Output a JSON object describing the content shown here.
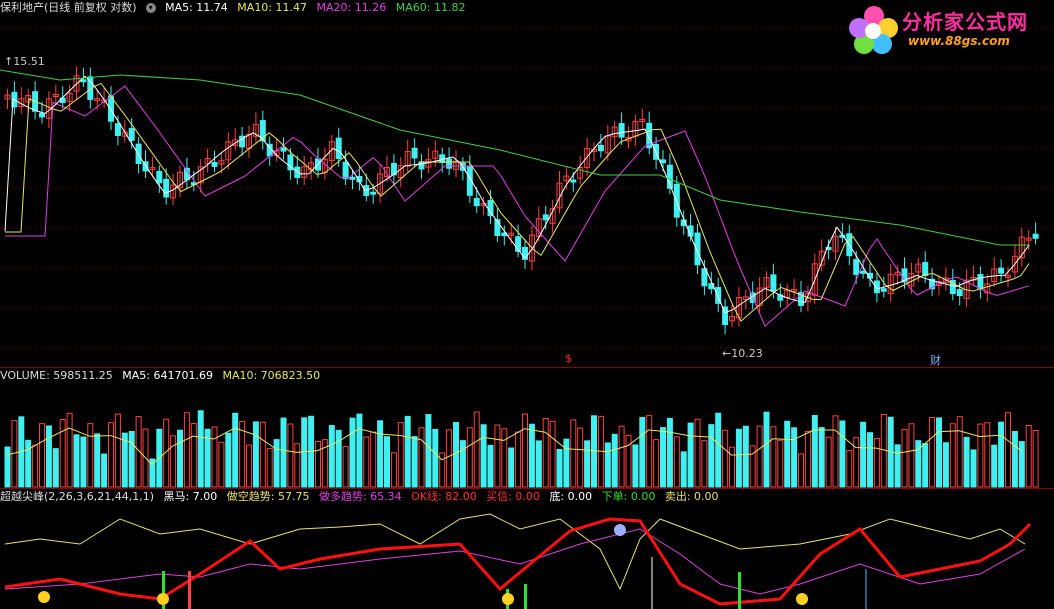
{
  "price_header": {
    "title": "保利地产(日线 前复权 对数)",
    "ma5": "MA5: 11.74",
    "ma10": "MA10: 11.47",
    "ma20": "MA20: 11.26",
    "ma60": "MA60: 11.82"
  },
  "price_labels": {
    "high": "15.51",
    "low": "10.23",
    "s_marker": "$",
    "cai_marker": "财"
  },
  "volume_header": {
    "volume": "VOLUME: 598511.25",
    "ma5": "MA5: 641701.69",
    "ma10": "MA10: 706823.50"
  },
  "indicator_header": {
    "name": "超越尖峰(2,26,3,6,21,44,1,1)",
    "heima": "黑马: 7.00",
    "zuokong": "做空趋势: 57.75",
    "zuoduo": "做多趋势: 65.34",
    "ok": "OK线: 82.00",
    "mai_xin": "买信: 0.00",
    "di": "底: 0.00",
    "xia_dan": "下单: 0.00",
    "mai_chu": "卖出: 0.00"
  },
  "logo": {
    "name": "分析家公式网",
    "url": "www.88gs.com"
  },
  "colors": {
    "up": "#ff4040",
    "down": "#40f0f0",
    "ma5": "#ffffff",
    "ma10": "#e8e860",
    "ma20": "#e040e0",
    "ma60": "#40d040",
    "ind_red": "#ff1010",
    "ind_yellow": "#e8e070",
    "ind_magenta": "#e040e0",
    "ind_green": "#30e030"
  }
}
